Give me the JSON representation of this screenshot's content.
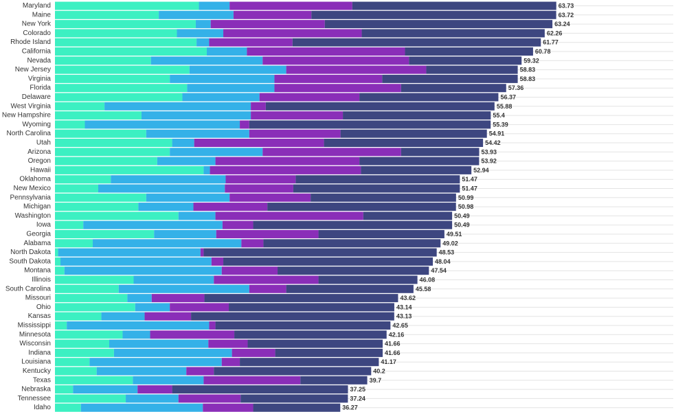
{
  "chart_data": {
    "type": "bar",
    "orientation": "horizontal",
    "stacked": true,
    "grid": true,
    "xlim": [
      0,
      70
    ],
    "colors": [
      "#3cf0c2",
      "#34b1e8",
      "#8a2eb8",
      "#3d4680"
    ],
    "categories": [
      "Maryland",
      "Maine",
      "New York",
      "Colorado",
      "Rhode Island",
      "California",
      "Nevada",
      "New Jersey",
      "Virginia",
      "Florida",
      "Delaware",
      "West Virginia",
      "New Hampshire",
      "Wyoming",
      "North Carolina",
      "Utah",
      "Arizona",
      "Oregon",
      "Hawaii",
      "Oklahoma",
      "New Mexico",
      "Pennsylvania",
      "Michigan",
      "Washington",
      "Iowa",
      "Georgia",
      "Alabama",
      "North Dakota",
      "South Dakota",
      "Montana",
      "Illinois",
      "South Carolina",
      "Missouri",
      "Ohio",
      "Kansas",
      "Mississippi",
      "Minnesota",
      "Wisconsin",
      "Indiana",
      "Louisiana",
      "Kentucky",
      "Texas",
      "Nebraska",
      "Tennessee",
      "Idaho"
    ],
    "totals": [
      "63.73",
      "63.72",
      "63.24",
      "62.26",
      "61.77",
      "60.78",
      "59.32",
      "58.83",
      "58.83",
      "57.36",
      "56.37",
      "55.88",
      "55.4",
      "55.39",
      "54.91",
      "54.42",
      "53.93",
      "53.92",
      "52.94",
      "51.47",
      "51.47",
      "50.99",
      "50.98",
      "50.49",
      "50.49",
      "49.51",
      "49.02",
      "48.53",
      "48.04",
      "47.54",
      "46.08",
      "45.58",
      "43.62",
      "43.14",
      "43.13",
      "42.65",
      "42.16",
      "41.66",
      "41.66",
      "41.17",
      "40.2",
      "39.7",
      "37.25",
      "37.24",
      "36.27"
    ],
    "series": [
      {
        "values": [
          18.3,
          13.2,
          17.9,
          15.5,
          18.0,
          19.3,
          12.2,
          17.1,
          14.6,
          16.8,
          16.2,
          6.3,
          11.0,
          3.8,
          11.6,
          14.9,
          14.6,
          13.0,
          18.9,
          7.1,
          5.5,
          11.6,
          10.6,
          15.7,
          3.6,
          12.6,
          4.8,
          0.4,
          0.7,
          1.2,
          10.0,
          8.1,
          9.2,
          10.2,
          5.9,
          1.5,
          8.6,
          6.9,
          7.5,
          4.4,
          5.3,
          9.9,
          2.3,
          9.0,
          3.3
        ]
      },
      {
        "values": [
          3.9,
          9.5,
          1.9,
          5.9,
          1.6,
          5.1,
          14.2,
          12.3,
          13.3,
          11.1,
          9.8,
          18.6,
          13.9,
          19.7,
          13.1,
          2.8,
          11.8,
          7.4,
          0.8,
          14.6,
          16.1,
          10.6,
          7.0,
          4.7,
          17.7,
          7.9,
          18.9,
          18.1,
          19.2,
          20.0,
          10.2,
          16.6,
          3.1,
          4.4,
          5.5,
          18.1,
          3.5,
          12.6,
          15.0,
          16.8,
          11.4,
          9.0,
          8.2,
          6.7,
          15.5
        ]
      },
      {
        "values": [
          15.6,
          9.9,
          14.5,
          17.6,
          10.6,
          20.1,
          18.6,
          17.8,
          13.7,
          16.1,
          12.7,
          1.9,
          11.7,
          1.2,
          11.6,
          16.5,
          17.6,
          18.3,
          19.2,
          8.9,
          8.7,
          10.3,
          9.4,
          18.8,
          3.9,
          13.0,
          2.8,
          0.4,
          1.5,
          7.1,
          13.3,
          4.7,
          6.7,
          7.5,
          5.9,
          0.8,
          10.7,
          5.0,
          5.5,
          2.3,
          3.5,
          12.3,
          4.4,
          7.9,
          6.4
        ]
      },
      {
        "values": [
          25.93,
          31.12,
          28.94,
          23.26,
          31.57,
          16.28,
          14.32,
          11.63,
          17.23,
          13.36,
          17.67,
          29.08,
          18.8,
          30.69,
          18.61,
          20.22,
          9.93,
          15.22,
          14.04,
          20.87,
          21.17,
          18.49,
          23.98,
          11.29,
          25.29,
          16.01,
          22.52,
          29.63,
          26.64,
          19.24,
          12.58,
          16.18,
          24.62,
          21.04,
          25.83,
          22.25,
          19.36,
          17.16,
          13.66,
          17.67,
          20.0,
          8.5,
          22.35,
          13.64,
          11.07
        ]
      }
    ]
  }
}
